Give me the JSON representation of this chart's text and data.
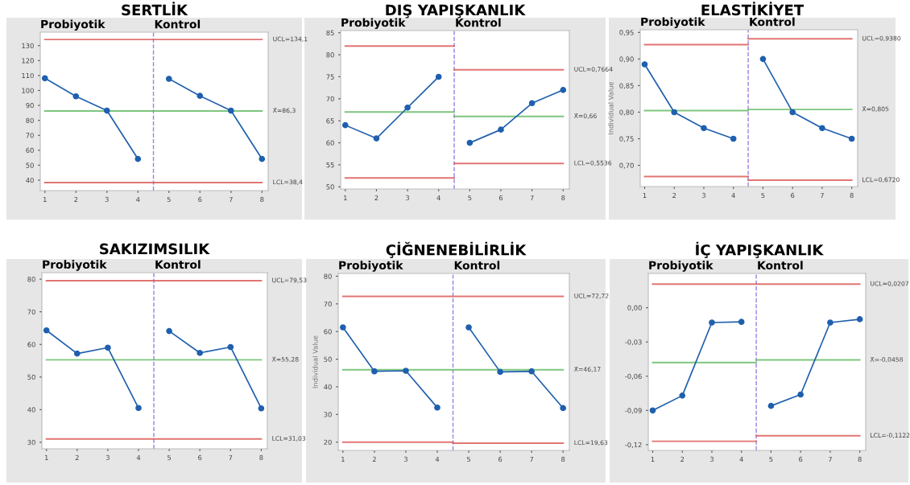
{
  "chart_data": [
    {
      "type": "line",
      "title": "SERTLİK",
      "xlim": [
        0.85,
        8.2
      ],
      "xticks": [
        1,
        2,
        3,
        4,
        5,
        6,
        7,
        8
      ],
      "ylim": [
        33,
        139
      ],
      "yticks": [
        40,
        50,
        60,
        70,
        80,
        90,
        100,
        110,
        120,
        130
      ],
      "grid": false,
      "legend": false,
      "marker": "circle",
      "line_style": "solid",
      "series": [
        {
          "color": "#1f5fae",
          "x": [
            1,
            2,
            3,
            4
          ],
          "values": [
            108.2,
            96.1,
            86.5,
            54.2
          ]
        },
        {
          "color": "#1f5fae",
          "x": [
            5,
            6,
            7,
            8
          ],
          "values": [
            107.8,
            96.4,
            86.5,
            54.2
          ]
        },
        {
          "color": "#d9534f",
          "marker": "none",
          "x": [
            1,
            8
          ],
          "values": [
            134.1,
            134.1
          ]
        },
        {
          "color": "#5cb85c",
          "marker": "none",
          "x": [
            1,
            8
          ],
          "values": [
            86.3,
            86.3
          ]
        },
        {
          "color": "#d9534f",
          "marker": "none",
          "x": [
            1,
            8
          ],
          "values": [
            38.4,
            38.4
          ]
        }
      ],
      "ref_lines": [
        {
          "axis": "x",
          "value": 4.5,
          "color": "#9c7fe0",
          "line_style": "dashed"
        }
      ],
      "annotations": [
        "Probiyotik",
        "Kontrol",
        "UCL=134,1",
        "X̄=86,3",
        "LCL=38,4"
      ]
    },
    {
      "type": "line",
      "title": "DIŞ YAPIŞKANLIK",
      "xlim": [
        0.85,
        8.2
      ],
      "xticks": [
        1,
        2,
        3,
        4,
        5,
        6,
        7,
        8
      ],
      "ylim": [
        49.5,
        85.5
      ],
      "yticks": [
        50,
        55,
        60,
        65,
        70,
        75,
        80,
        85
      ],
      "grid": false,
      "legend": false,
      "marker": "circle",
      "line_style": "solid",
      "series": [
        {
          "color": "#1f5fae",
          "x": [
            1,
            2,
            3,
            4
          ],
          "values": [
            64,
            61,
            68,
            75
          ]
        },
        {
          "color": "#1f5fae",
          "x": [
            5,
            6,
            7,
            8
          ],
          "values": [
            60,
            63,
            69,
            72
          ]
        },
        {
          "color": "#d9534f",
          "marker": "none",
          "x": [
            1,
            4.5
          ],
          "values": [
            82,
            82
          ]
        },
        {
          "color": "#5cb85c",
          "marker": "none",
          "x": [
            1,
            4.5
          ],
          "values": [
            67,
            67
          ]
        },
        {
          "color": "#d9534f",
          "marker": "none",
          "x": [
            1,
            4.5
          ],
          "values": [
            52,
            52
          ]
        },
        {
          "color": "#d9534f",
          "marker": "none",
          "x": [
            4.5,
            8
          ],
          "values": [
            76.6,
            76.6
          ]
        },
        {
          "color": "#5cb85c",
          "marker": "none",
          "x": [
            4.5,
            8
          ],
          "values": [
            66,
            66
          ]
        },
        {
          "color": "#d9534f",
          "marker": "none",
          "x": [
            4.5,
            8
          ],
          "values": [
            55.3,
            55.3
          ]
        }
      ],
      "ref_lines": [
        {
          "axis": "x",
          "value": 4.5,
          "color": "#9c7fe0",
          "line_style": "dashed"
        }
      ],
      "annotations": [
        "Probiyotik",
        "Kontrol",
        "UCL=0,7664",
        "X̄=0,66",
        "LCL=0,5536"
      ]
    },
    {
      "type": "line",
      "title": "ELASTİKİYET",
      "ylabel": "Individual Value",
      "xlim": [
        0.85,
        8.2
      ],
      "xticks": [
        1,
        2,
        3,
        4,
        5,
        6,
        7,
        8
      ],
      "ylim": [
        0.66,
        0.955
      ],
      "yticks": [
        {
          "value": 0.7,
          "label": "0,70"
        },
        {
          "value": 0.75,
          "label": "0,75"
        },
        {
          "value": 0.8,
          "label": "0,80"
        },
        {
          "value": 0.85,
          "label": "0,85"
        },
        {
          "value": 0.9,
          "label": "0,90"
        },
        {
          "value": 0.95,
          "label": "0,95"
        }
      ],
      "grid": false,
      "legend": false,
      "marker": "circle",
      "line_style": "solid",
      "series": [
        {
          "color": "#1f5fae",
          "x": [
            1,
            2,
            3,
            4
          ],
          "values": [
            0.89,
            0.8,
            0.77,
            0.75
          ]
        },
        {
          "color": "#1f5fae",
          "x": [
            5,
            6,
            7,
            8
          ],
          "values": [
            0.9,
            0.8,
            0.77,
            0.75
          ]
        },
        {
          "color": "#d9534f",
          "marker": "none",
          "x": [
            1,
            4.5
          ],
          "values": [
            0.927,
            0.927
          ]
        },
        {
          "color": "#5cb85c",
          "marker": "none",
          "x": [
            1,
            4.5,
            4.5,
            8
          ],
          "values": [
            0.803,
            0.803,
            0.805,
            0.805
          ]
        },
        {
          "color": "#d9534f",
          "marker": "none",
          "x": [
            1,
            4.5
          ],
          "values": [
            0.679,
            0.679
          ]
        },
        {
          "color": "#d9534f",
          "marker": "none",
          "x": [
            4.5,
            8
          ],
          "values": [
            0.938,
            0.938
          ]
        },
        {
          "color": "#d9534f",
          "marker": "none",
          "x": [
            4.5,
            8
          ],
          "values": [
            0.672,
            0.672
          ]
        }
      ],
      "ref_lines": [
        {
          "axis": "x",
          "value": 4.5,
          "color": "#9c7fe0",
          "line_style": "dashed"
        }
      ],
      "annotations": [
        "Probiyotik",
        "Kontrol",
        "UCL=0,9380",
        "X̄=0,805",
        "LCL=0,6720"
      ]
    },
    {
      "type": "line",
      "title": "SAKIZIMSILIK",
      "xlim": [
        0.85,
        8.2
      ],
      "xticks": [
        1,
        2,
        3,
        4,
        5,
        6,
        7,
        8
      ],
      "ylim": [
        28,
        82
      ],
      "yticks": [
        30,
        40,
        50,
        60,
        70,
        80
      ],
      "grid": false,
      "legend": false,
      "marker": "circle",
      "line_style": "solid",
      "series": [
        {
          "color": "#1f5fae",
          "x": [
            1,
            2,
            3,
            4
          ],
          "values": [
            64.3,
            57.2,
            59,
            40.5
          ]
        },
        {
          "color": "#1f5fae",
          "x": [
            5,
            6,
            7,
            8
          ],
          "values": [
            64.1,
            57.4,
            59.2,
            40.4
          ]
        },
        {
          "color": "#d9534f",
          "marker": "none",
          "x": [
            1,
            8
          ],
          "values": [
            79.53,
            79.53
          ]
        },
        {
          "color": "#5cb85c",
          "marker": "none",
          "x": [
            1,
            8
          ],
          "values": [
            55.28,
            55.28
          ]
        },
        {
          "color": "#d9534f",
          "marker": "none",
          "x": [
            1,
            8
          ],
          "values": [
            31.03,
            31.03
          ]
        }
      ],
      "ref_lines": [
        {
          "axis": "x",
          "value": 4.5,
          "color": "#9c7fe0",
          "line_style": "dashed"
        }
      ],
      "annotations": [
        "Probiyotik",
        "Kontrol",
        "UCL=79,53",
        "X̄=55,28",
        "LCL=31,03"
      ]
    },
    {
      "type": "line",
      "title": "ÇİĞNENEBİLİRLİK",
      "ylabel": "Individual Value",
      "xlim": [
        0.85,
        8.2
      ],
      "xticks": [
        1,
        2,
        3,
        4,
        5,
        6,
        7,
        8
      ],
      "ylim": [
        17,
        81
      ],
      "yticks": [
        20,
        30,
        40,
        50,
        60,
        70,
        80
      ],
      "grid": false,
      "legend": false,
      "marker": "circle",
      "line_style": "solid",
      "series": [
        {
          "color": "#1f5fae",
          "x": [
            1,
            2,
            3,
            4
          ],
          "values": [
            61.5,
            45.6,
            45.8,
            32.5
          ]
        },
        {
          "color": "#1f5fae",
          "x": [
            5,
            6,
            7,
            8
          ],
          "values": [
            61.5,
            45.4,
            45.6,
            32.3
          ]
        },
        {
          "color": "#d9534f",
          "marker": "none",
          "x": [
            1,
            8
          ],
          "values": [
            72.72,
            72.72
          ]
        },
        {
          "color": "#5cb85c",
          "marker": "none",
          "x": [
            1,
            8
          ],
          "values": [
            46.17,
            46.17
          ]
        },
        {
          "color": "#d9534f",
          "marker": "none",
          "x": [
            1,
            4.5,
            4.5,
            8
          ],
          "values": [
            20,
            20,
            19.63,
            19.63
          ]
        }
      ],
      "ref_lines": [
        {
          "axis": "x",
          "value": 4.5,
          "color": "#9c7fe0",
          "line_style": "dashed"
        }
      ],
      "annotations": [
        "Probiyotik",
        "Kontrol",
        "UCL=72,72",
        "X̄=46,17",
        "LCL=19,63"
      ]
    },
    {
      "type": "line",
      "title": "İÇ YAPIŞKANLIK",
      "xlim": [
        0.85,
        8.2
      ],
      "xticks": [
        1,
        2,
        3,
        4,
        5,
        6,
        7,
        8
      ],
      "ylim": [
        -0.125,
        0.03
      ],
      "yticks": [
        {
          "value": -0.12,
          "label": "-0,12"
        },
        {
          "value": -0.09,
          "label": "-0,09"
        },
        {
          "value": -0.06,
          "label": "-0,06"
        },
        {
          "value": -0.03,
          "label": "-0,03"
        },
        {
          "value": 0,
          "label": "0,00"
        }
      ],
      "grid": false,
      "legend": false,
      "marker": "circle",
      "line_style": "solid",
      "series": [
        {
          "color": "#1f5fae",
          "x": [
            1,
            2,
            3,
            4
          ],
          "values": [
            -0.09,
            -0.077,
            -0.013,
            -0.0124
          ]
        },
        {
          "color": "#1f5fae",
          "x": [
            5,
            6,
            7,
            8
          ],
          "values": [
            -0.086,
            -0.076,
            -0.013,
            -0.0101
          ]
        },
        {
          "color": "#d9534f",
          "marker": "none",
          "x": [
            1,
            8
          ],
          "values": [
            0.0207,
            0.0207
          ]
        },
        {
          "color": "#5cb85c",
          "marker": "none",
          "x": [
            1,
            4.5
          ],
          "values": [
            -0.048,
            -0.048
          ]
        },
        {
          "color": "#d9534f",
          "marker": "none",
          "x": [
            1,
            4.5
          ],
          "values": [
            -0.117,
            -0.117
          ]
        },
        {
          "color": "#5cb85c",
          "marker": "none",
          "x": [
            4.5,
            8
          ],
          "values": [
            -0.0458,
            -0.0458
          ]
        },
        {
          "color": "#d9534f",
          "marker": "none",
          "x": [
            4.5,
            8
          ],
          "values": [
            -0.1122,
            -0.1122
          ]
        }
      ],
      "ref_lines": [
        {
          "axis": "x",
          "value": 4.5,
          "color": "#9c7fe0",
          "line_style": "dashed"
        }
      ],
      "annotations": [
        "Probiyotik",
        "Kontrol",
        "UCL=0,0207",
        "X̄=-0,0458",
        "LCL=-0,1122"
      ]
    }
  ]
}
